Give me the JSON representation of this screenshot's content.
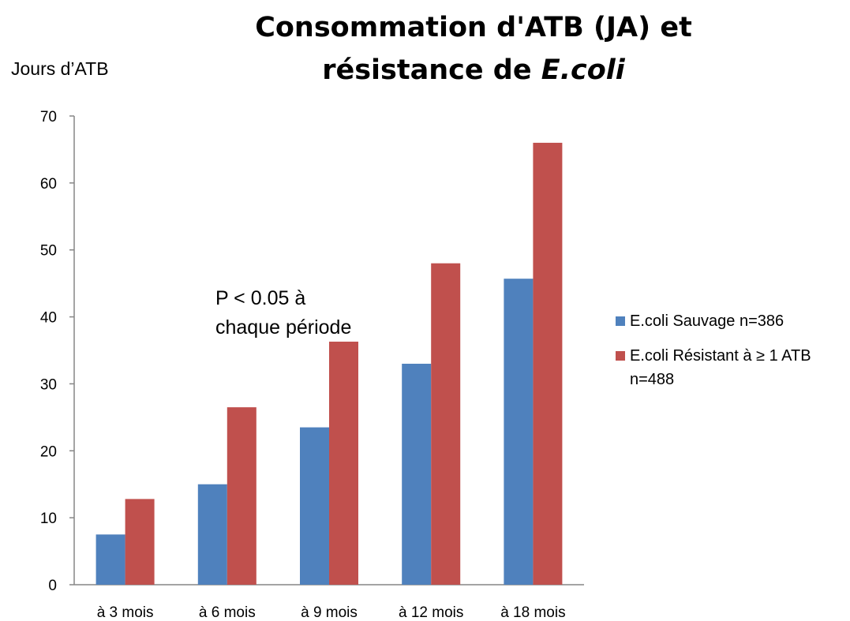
{
  "chart_data": {
    "type": "bar",
    "title": "Consommation d'ATB (JA) et",
    "title_line2_prefix": "résistance de ",
    "title_line2_italic": "E.coli",
    "ylabel": "Jours d’ATB",
    "xlabel": "",
    "categories": [
      "à 3 mois",
      "à 6 mois",
      "à 9 mois",
      "à 12 mois",
      "à 18 mois"
    ],
    "ylim": [
      0,
      70
    ],
    "yticks": [
      0,
      10,
      20,
      30,
      40,
      50,
      60,
      70
    ],
    "grid": false,
    "legend_position": "right",
    "series": [
      {
        "name": "E.coli Sauvage  n=386",
        "color": "#4F81BD",
        "values": [
          7.5,
          15,
          23.5,
          33,
          45.7
        ]
      },
      {
        "name": "E.coli Résistant à ≥ 1 ATB n=488",
        "color": "#C0504D",
        "values": [
          12.8,
          26.5,
          36.3,
          48,
          66
        ]
      }
    ],
    "annotation": [
      "P < 0.05 à",
      "chaque période"
    ]
  }
}
